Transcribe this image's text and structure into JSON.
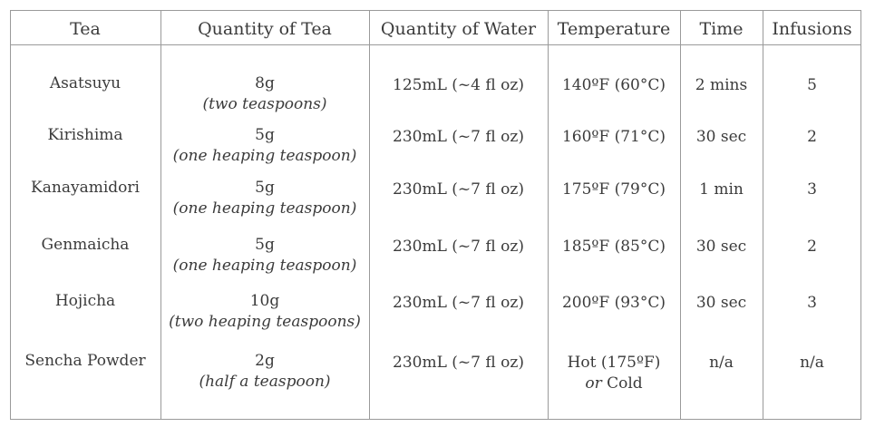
{
  "headers": [
    "Tea",
    "Quantity of Tea",
    "Quantity of Water",
    "Temperature",
    "Time",
    "Infusions"
  ],
  "rows": [
    {
      "tea": "Asatsuyu",
      "qty": "8g",
      "qty_note": "(two teaspoons)",
      "water": "125mL (~4 fl oz)",
      "temp": "140ºF (60°C)",
      "temp_note": "",
      "time": "2 mins",
      "infusions": "5"
    },
    {
      "tea": "Kirishima",
      "qty": "5g",
      "qty_note": "(one heaping teaspoon)",
      "water": "230mL (~7 fl oz)",
      "temp": "160ºF (71°C)",
      "temp_note": "",
      "time": "30 sec",
      "infusions": "2"
    },
    {
      "tea": "Kanayamidori",
      "qty": "5g",
      "qty_note": "(one heaping teaspoon)",
      "water": "230mL (~7 fl oz)",
      "temp": "175ºF (79°C)",
      "temp_note": "",
      "time": "1 min",
      "infusions": "3"
    },
    {
      "tea": "Genmaicha",
      "qty": "5g",
      "qty_note": "(one heaping teaspoon)",
      "water": "230mL (~7 fl oz)",
      "temp": "185ºF (85°C)",
      "temp_note": "",
      "time": "30 sec",
      "infusions": "2"
    },
    {
      "tea": "Hojicha",
      "qty": "10g",
      "qty_note": "(two heaping teaspoons)",
      "water": "230mL (~7 fl oz)",
      "temp": "200ºF (93°C)",
      "temp_note": "",
      "time": "30 sec",
      "infusions": "3"
    },
    {
      "tea": "Sencha Powder",
      "qty": "2g",
      "qty_note": "(half a teaspoon)",
      "water": "230mL (~7 fl oz)",
      "temp": "Hot (175ºF)",
      "temp_note": "or Cold",
      "time": "n/a",
      "infusions": "n/a"
    }
  ]
}
